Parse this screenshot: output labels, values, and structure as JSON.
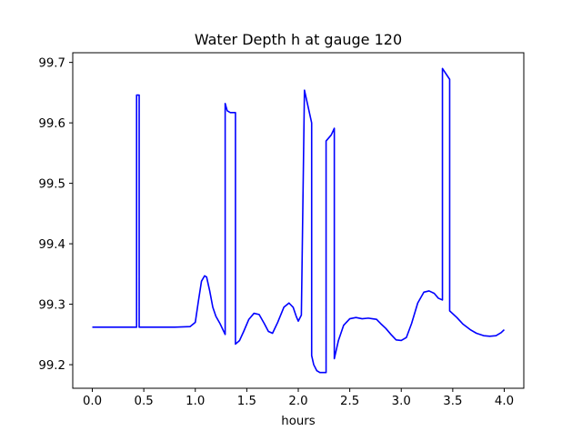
{
  "chart_data": {
    "type": "line",
    "title": "Water Depth h at gauge 120",
    "xlabel": "hours",
    "ylabel": "",
    "xlim": [
      -0.19,
      4.19
    ],
    "ylim": [
      99.161,
      99.716
    ],
    "grid": false,
    "line_color": "#0000ff",
    "x_ticks": [
      0.0,
      0.5,
      1.0,
      1.5,
      2.0,
      2.5,
      3.0,
      3.5,
      4.0
    ],
    "x_tick_labels": [
      "0.0",
      "0.5",
      "1.0",
      "1.5",
      "2.0",
      "2.5",
      "3.0",
      "3.5",
      "4.0"
    ],
    "y_ticks": [
      99.2,
      99.3,
      99.4,
      99.5,
      99.6,
      99.7
    ],
    "y_tick_labels": [
      "99.2",
      "99.3",
      "99.4",
      "99.5",
      "99.6",
      "99.7"
    ],
    "series": [
      {
        "name": "",
        "x": [
          0.0,
          0.2,
          0.43,
          0.43,
          0.44,
          0.455,
          0.455,
          0.6,
          0.8,
          0.95,
          1.0,
          1.03,
          1.06,
          1.09,
          1.11,
          1.14,
          1.17,
          1.2,
          1.24,
          1.29,
          1.29,
          1.31,
          1.34,
          1.39,
          1.39,
          1.43,
          1.47,
          1.52,
          1.57,
          1.62,
          1.67,
          1.71,
          1.75,
          1.8,
          1.86,
          1.91,
          1.95,
          1.98,
          2.0,
          2.03,
          2.06,
          2.06,
          2.13,
          2.13,
          2.15,
          2.18,
          2.21,
          2.27,
          2.27,
          2.32,
          2.35,
          2.35,
          2.39,
          2.44,
          2.5,
          2.56,
          2.62,
          2.68,
          2.72,
          2.76,
          2.8,
          2.85,
          2.9,
          2.95,
          3.0,
          3.05,
          3.1,
          3.16,
          3.22,
          3.27,
          3.32,
          3.36,
          3.4,
          3.4,
          3.47,
          3.47,
          3.54,
          3.6,
          3.67,
          3.73,
          3.8,
          3.86,
          3.92,
          3.97,
          4.0
        ],
        "y": [
          99.262,
          99.262,
          99.262,
          99.646,
          99.646,
          99.646,
          99.262,
          99.262,
          99.262,
          99.263,
          99.27,
          99.305,
          99.338,
          99.347,
          99.345,
          99.322,
          99.295,
          99.28,
          99.268,
          99.25,
          99.632,
          99.62,
          99.617,
          99.617,
          99.234,
          99.24,
          99.255,
          99.275,
          99.285,
          99.283,
          99.268,
          99.255,
          99.252,
          99.27,
          99.295,
          99.302,
          99.295,
          99.28,
          99.272,
          99.282,
          99.654,
          99.654,
          99.6,
          99.215,
          99.2,
          99.19,
          99.187,
          99.187,
          99.57,
          99.58,
          99.591,
          99.21,
          99.24,
          99.265,
          99.276,
          99.278,
          99.276,
          99.277,
          99.276,
          99.275,
          99.268,
          99.26,
          99.25,
          99.241,
          99.24,
          99.245,
          99.268,
          99.302,
          99.32,
          99.322,
          99.318,
          99.31,
          99.307,
          99.69,
          99.672,
          99.289,
          99.278,
          99.267,
          99.258,
          99.252,
          99.248,
          99.247,
          99.248,
          99.253,
          99.258
        ]
      }
    ]
  }
}
